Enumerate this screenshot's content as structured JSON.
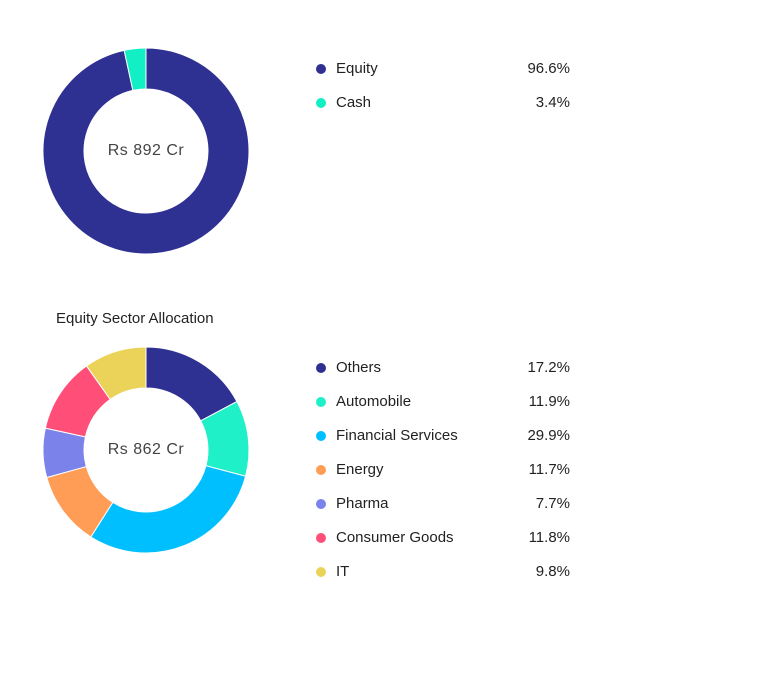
{
  "chart_data": [
    {
      "type": "pie",
      "center_label": "Rs 892 Cr",
      "categories": [
        "Equity",
        "Cash"
      ],
      "values": [
        96.6,
        3.4
      ],
      "value_labels": [
        "96.6%",
        "3.4%"
      ],
      "colors": [
        "#2e3192",
        "#13efc4"
      ]
    },
    {
      "type": "pie",
      "title": "Equity Sector Allocation",
      "center_label": "Rs 862 Cr",
      "categories": [
        "Others",
        "Automobile",
        "Financial Services",
        "Energy",
        "Pharma",
        "Consumer Goods",
        "IT"
      ],
      "values": [
        17.2,
        11.9,
        29.9,
        11.7,
        7.7,
        11.8,
        9.8
      ],
      "value_labels": [
        "17.2%",
        "11.9%",
        "29.9%",
        "11.7%",
        "7.7%",
        "11.8%",
        "9.8%"
      ],
      "colors": [
        "#2e3192",
        "#1ff0c8",
        "#00bfff",
        "#ff9d56",
        "#7b83eb",
        "#ff4f78",
        "#ebd35a"
      ]
    }
  ]
}
